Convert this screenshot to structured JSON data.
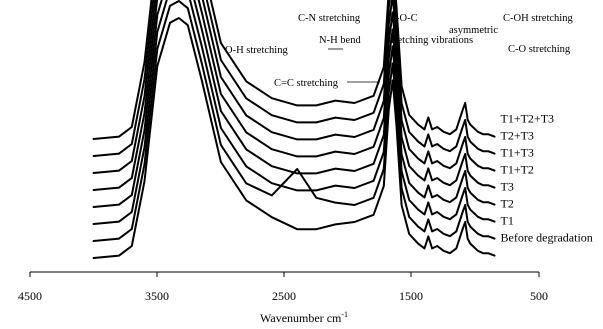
{
  "chart_data": {
    "type": "line",
    "title": "",
    "xlabel": "Wavenumber",
    "xlabel_unit_base": "cm",
    "xlabel_unit_exp": "-1",
    "ylabel": "",
    "xlim": [
      4500,
      500
    ],
    "x_reversed": true,
    "x_ticks": [
      "4500",
      "3500",
      "2500",
      "1500",
      "500"
    ],
    "grid": false,
    "x_shape": [
      4000,
      3800,
      3700,
      3600,
      3500,
      3400,
      3330,
      3260,
      3150,
      3000,
      2800,
      2600,
      2400,
      2250,
      2100,
      1950,
      1800,
      1720,
      1680,
      1650,
      1620,
      1580,
      1520,
      1450,
      1400,
      1370,
      1340,
      1300,
      1250,
      1200,
      1150,
      1100,
      1080,
      1060,
      1040,
      1020,
      980,
      940,
      900,
      850
    ],
    "series": [
      {
        "name": "Before degradation",
        "values": [
          0.0,
          0.01,
          0.05,
          0.32,
          0.8,
          0.98,
          1.0,
          0.97,
          0.74,
          0.4,
          0.24,
          0.17,
          0.12,
          0.12,
          0.14,
          0.15,
          0.18,
          0.3,
          0.62,
          0.74,
          0.55,
          0.22,
          0.1,
          0.06,
          0.04,
          0.09,
          0.04,
          0.05,
          0.03,
          0.02,
          0.04,
          0.12,
          0.15,
          0.08,
          0.06,
          0.05,
          0.03,
          0.02,
          0.02,
          0.01
        ]
      },
      {
        "name": "T1",
        "values": [
          0.0,
          0.01,
          0.05,
          0.32,
          0.8,
          0.98,
          1.0,
          0.97,
          0.74,
          0.4,
          0.24,
          0.19,
          0.3,
          0.18,
          0.16,
          0.15,
          0.18,
          0.3,
          0.62,
          0.74,
          0.55,
          0.22,
          0.1,
          0.06,
          0.04,
          0.09,
          0.04,
          0.05,
          0.03,
          0.02,
          0.04,
          0.12,
          0.15,
          0.08,
          0.06,
          0.05,
          0.03,
          0.02,
          0.02,
          0.01
        ]
      },
      {
        "name": "T2",
        "values": [
          0.0,
          0.01,
          0.05,
          0.32,
          0.8,
          0.98,
          1.0,
          0.97,
          0.74,
          0.4,
          0.24,
          0.17,
          0.14,
          0.14,
          0.16,
          0.15,
          0.18,
          0.3,
          0.62,
          0.74,
          0.55,
          0.22,
          0.1,
          0.06,
          0.04,
          0.09,
          0.04,
          0.05,
          0.03,
          0.02,
          0.04,
          0.12,
          0.15,
          0.08,
          0.06,
          0.05,
          0.03,
          0.02,
          0.02,
          0.01
        ]
      },
      {
        "name": "T3",
        "values": [
          0.0,
          0.01,
          0.05,
          0.32,
          0.8,
          0.98,
          1.0,
          0.97,
          0.74,
          0.4,
          0.24,
          0.17,
          0.14,
          0.14,
          0.16,
          0.15,
          0.18,
          0.3,
          0.62,
          0.74,
          0.55,
          0.22,
          0.1,
          0.06,
          0.04,
          0.09,
          0.04,
          0.05,
          0.03,
          0.02,
          0.04,
          0.12,
          0.15,
          0.08,
          0.06,
          0.05,
          0.03,
          0.02,
          0.02,
          0.01
        ]
      },
      {
        "name": "T1+T2",
        "values": [
          0.0,
          0.01,
          0.05,
          0.32,
          0.8,
          0.98,
          1.0,
          0.97,
          0.74,
          0.4,
          0.24,
          0.17,
          0.14,
          0.14,
          0.16,
          0.15,
          0.18,
          0.3,
          0.62,
          0.74,
          0.55,
          0.22,
          0.1,
          0.06,
          0.04,
          0.09,
          0.04,
          0.05,
          0.03,
          0.02,
          0.04,
          0.12,
          0.15,
          0.08,
          0.06,
          0.05,
          0.03,
          0.02,
          0.02,
          0.01
        ]
      },
      {
        "name": "T1+T3",
        "values": [
          0.0,
          0.01,
          0.05,
          0.32,
          0.8,
          0.98,
          1.0,
          0.97,
          0.74,
          0.4,
          0.24,
          0.17,
          0.14,
          0.14,
          0.16,
          0.15,
          0.18,
          0.3,
          0.62,
          0.74,
          0.55,
          0.22,
          0.1,
          0.06,
          0.04,
          0.09,
          0.04,
          0.05,
          0.03,
          0.02,
          0.04,
          0.12,
          0.15,
          0.08,
          0.06,
          0.05,
          0.03,
          0.02,
          0.02,
          0.01
        ]
      },
      {
        "name": "T2+T3",
        "values": [
          0.0,
          0.01,
          0.05,
          0.32,
          0.8,
          0.98,
          1.0,
          0.97,
          0.74,
          0.4,
          0.24,
          0.17,
          0.14,
          0.14,
          0.16,
          0.15,
          0.18,
          0.3,
          0.62,
          0.74,
          0.55,
          0.22,
          0.1,
          0.06,
          0.04,
          0.09,
          0.04,
          0.05,
          0.03,
          0.02,
          0.04,
          0.12,
          0.15,
          0.08,
          0.06,
          0.05,
          0.03,
          0.02,
          0.02,
          0.01
        ]
      },
      {
        "name": "T1+T2+T3",
        "values": [
          0.0,
          0.01,
          0.05,
          0.32,
          0.8,
          0.98,
          1.0,
          0.97,
          0.74,
          0.4,
          0.24,
          0.17,
          0.14,
          0.14,
          0.16,
          0.15,
          0.18,
          0.3,
          0.62,
          0.74,
          0.55,
          0.22,
          0.1,
          0.06,
          0.04,
          0.09,
          0.04,
          0.05,
          0.03,
          0.02,
          0.04,
          0.12,
          0.15,
          0.08,
          0.06,
          0.05,
          0.03,
          0.02,
          0.02,
          0.01
        ]
      }
    ],
    "annotations": [
      {
        "text": "O-H stretching",
        "x": 3330
      },
      {
        "text": "C=C stretching",
        "x": 1650
      },
      {
        "text": "C-N stretching",
        "x": 1400
      },
      {
        "text": "N-H bend",
        "x": 1400
      },
      {
        "text": "C-O-C",
        "x": 1250
      },
      {
        "text": "stretching vibrations",
        "x": 1250
      },
      {
        "text": "asymmetric",
        "x": 1150
      },
      {
        "text": "C-OH stretching",
        "x": 1080
      },
      {
        "text": "C-O stretching",
        "x": 1040
      }
    ]
  }
}
